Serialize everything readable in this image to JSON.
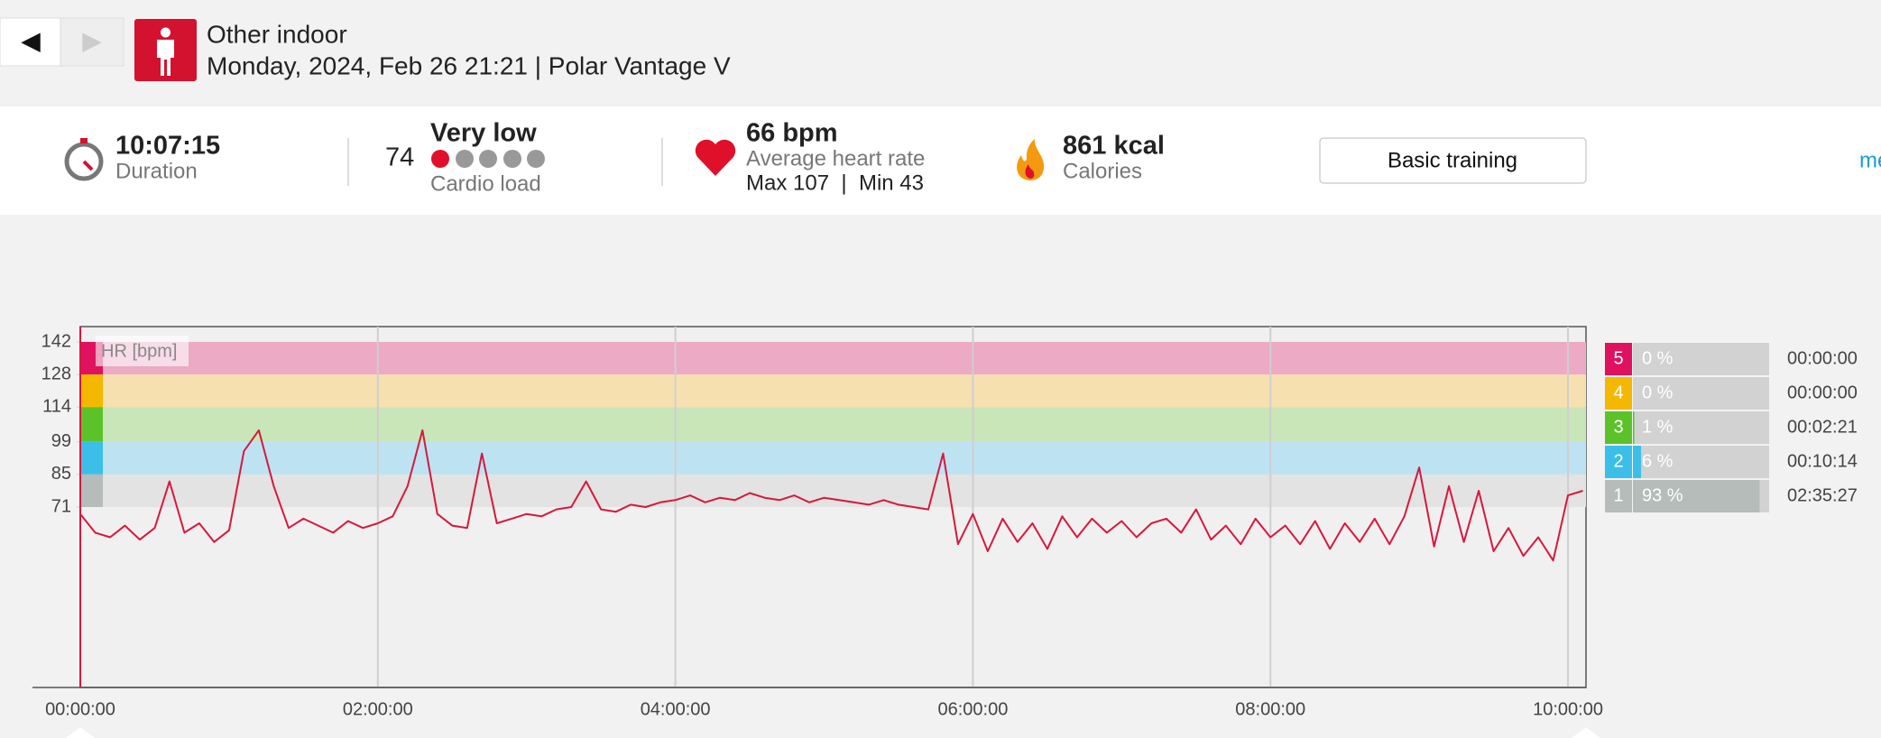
{
  "header": {
    "back": "◀",
    "forward": "▶",
    "sport": "Other indoor",
    "subtitle": "Monday, 2024, Feb 26 21:21 | Polar Vantage V"
  },
  "summary": {
    "duration": "10:07:15",
    "duration_label": "Duration",
    "cardio_load": "74",
    "cardio_level": "Very low",
    "cardio_label": "Cardio load",
    "hr": "66 bpm",
    "hr_label": "Average heart rate",
    "hr_range": "Max 107  |  Min 43",
    "calories": "861 kcal",
    "calories_label": "Calories",
    "button": "Basic training",
    "link": "me"
  },
  "chart_data": {
    "type": "line",
    "ylabel": "HR [bpm]",
    "color": "#d8173f",
    "x": [
      0,
      0.1,
      0.2,
      0.3,
      0.4,
      0.5,
      0.6,
      0.7,
      0.8,
      0.9,
      1,
      1.1,
      1.2,
      1.3,
      1.4,
      1.5,
      1.6,
      1.7,
      1.8,
      1.9,
      2,
      2.1,
      2.2,
      2.3,
      2.4,
      2.5,
      2.6,
      2.7,
      2.8,
      2.9,
      3,
      3.1,
      3.2,
      3.3,
      3.4,
      3.5,
      3.6,
      3.7,
      3.8,
      3.9,
      4,
      4.1,
      4.2,
      4.3,
      4.4,
      4.5,
      4.6,
      4.7,
      4.8,
      4.9,
      5,
      5.1,
      5.2,
      5.3,
      5.4,
      5.5,
      5.6,
      5.7,
      5.8,
      5.9,
      6,
      6.1,
      6.2,
      6.3,
      6.4,
      6.5,
      6.6,
      6.7,
      6.8,
      6.9,
      7,
      7.1,
      7.2,
      7.3,
      7.4,
      7.5,
      7.6,
      7.7,
      7.8,
      7.9,
      8,
      8.1,
      8.2,
      8.3,
      8.4,
      8.5,
      8.6,
      8.7,
      8.8,
      8.9,
      9,
      9.1,
      9.2,
      9.3,
      9.4,
      9.5,
      9.6,
      9.7,
      9.8,
      9.9,
      10,
      10.1
    ],
    "values": [
      68,
      60,
      58,
      63,
      57,
      62,
      82,
      60,
      64,
      56,
      61,
      95,
      104,
      80,
      62,
      66,
      63,
      60,
      65,
      62,
      64,
      67,
      80,
      104,
      68,
      63,
      62,
      94,
      64,
      66,
      68,
      67,
      70,
      71,
      82,
      70,
      69,
      72,
      71,
      73,
      74,
      76,
      73,
      75,
      74,
      77,
      75,
      74,
      76,
      73,
      75,
      74,
      73,
      72,
      74,
      72,
      71,
      70,
      94,
      55,
      68,
      52,
      66,
      56,
      64,
      53,
      67,
      58,
      66,
      60,
      65,
      58,
      64,
      66,
      60,
      70,
      57,
      63,
      55,
      66,
      58,
      63,
      55,
      65,
      53,
      64,
      56,
      66,
      55,
      67,
      88,
      54,
      80,
      56,
      78,
      52,
      62,
      50,
      58,
      48,
      76,
      78
    ],
    "xlim": [
      0,
      10.121
    ],
    "ylim": [
      -6.6,
      148.6
    ],
    "xticks": [
      {
        "value": 0,
        "label": "00:00:00"
      },
      {
        "value": 2,
        "label": "02:00:00"
      },
      {
        "value": 4,
        "label": "04:00:00"
      },
      {
        "value": 6,
        "label": "06:00:00"
      },
      {
        "value": 8,
        "label": "08:00:00"
      },
      {
        "value": 10,
        "label": "10:00:00"
      }
    ],
    "yticks": [
      142,
      128,
      114,
      99,
      85,
      71
    ],
    "grid": true,
    "band_colors": [
      "#ecaac4",
      "#f6e0b0",
      "#c8e6b8",
      "#bde3f2",
      "#e2e3e2"
    ],
    "zones": {
      "names": [
        "5",
        "4",
        "3",
        "2",
        "1"
      ],
      "values": [
        0,
        0,
        1,
        6,
        93
      ],
      "value_labels": [
        "0 %",
        "0 %",
        "1 %",
        "6 %",
        "93 %"
      ],
      "times": [
        "00:00:00",
        "00:00:00",
        "00:02:21",
        "00:10:14",
        "02:35:27"
      ],
      "colors": [
        "#e0115f",
        "#f5b800",
        "#5cc22a",
        "#3bbfe8",
        "#b5bcba"
      ]
    }
  }
}
